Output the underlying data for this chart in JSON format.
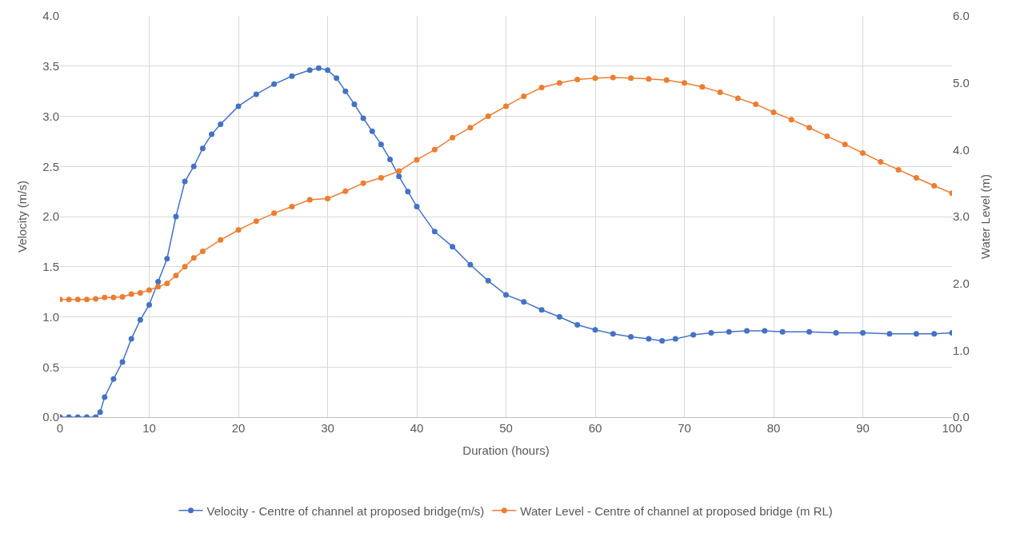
{
  "chart_data": {
    "type": "line",
    "xlabel": "Duration (hours)",
    "ylabel": "Velocity (m/s)",
    "y2label": "Water Level (m)",
    "xlim": [
      0,
      100
    ],
    "xticks": [
      0,
      10,
      20,
      30,
      40,
      50,
      60,
      70,
      80,
      90,
      100
    ],
    "ylim": [
      0,
      4
    ],
    "yticks": [
      {
        "value": 0,
        "label": "0.0"
      },
      0.5,
      {
        "value": 1,
        "label": "1.0"
      },
      1.5,
      {
        "value": 2,
        "label": "2.0"
      },
      2.5,
      {
        "value": 3,
        "label": "3.0"
      },
      3.5,
      {
        "value": 4,
        "label": "4.0"
      }
    ],
    "y2lim": [
      0,
      6
    ],
    "y2ticks": [
      {
        "value": 0,
        "label": "0.0"
      },
      {
        "value": 1,
        "label": "1.0"
      },
      {
        "value": 2,
        "label": "2.0"
      },
      {
        "value": 3,
        "label": "3.0"
      },
      {
        "value": 4,
        "label": "4.0"
      },
      {
        "value": 5,
        "label": "5.0"
      },
      {
        "value": 6,
        "label": "6.0"
      }
    ],
    "grid": true,
    "legend": "bottom",
    "marker": "circle",
    "line_style": "solid",
    "series": [
      {
        "name": "Velocity - Centre of channel at proposed bridge(m/s)",
        "color": "#4472c4",
        "x": [
          0,
          1,
          2,
          3,
          4,
          4.5,
          5,
          6,
          7,
          8,
          9,
          10,
          11,
          12,
          13,
          14,
          15,
          16,
          17,
          18,
          20,
          22,
          24,
          26,
          28,
          29,
          30,
          31,
          32,
          33,
          34,
          35,
          36,
          37,
          38,
          39,
          40,
          42,
          44,
          46,
          48,
          50,
          52,
          54,
          56,
          58,
          60,
          62,
          64,
          66,
          67.5,
          69,
          71,
          73,
          75,
          77,
          79,
          81,
          84,
          87,
          90,
          93,
          96,
          98,
          100
        ],
        "values": [
          0,
          0,
          0,
          0,
          0,
          0.05,
          0.2,
          0.38,
          0.55,
          0.78,
          0.97,
          1.12,
          1.35,
          1.58,
          2.0,
          2.35,
          2.5,
          2.68,
          2.82,
          2.92,
          3.1,
          3.22,
          3.32,
          3.4,
          3.46,
          3.48,
          3.46,
          3.38,
          3.25,
          3.12,
          2.98,
          2.85,
          2.72,
          2.57,
          2.4,
          2.25,
          2.1,
          1.85,
          1.7,
          1.52,
          1.36,
          1.22,
          1.15,
          1.07,
          1.0,
          0.92,
          0.87,
          0.83,
          0.8,
          0.78,
          0.76,
          0.78,
          0.82,
          0.84,
          0.85,
          0.86,
          0.86,
          0.85,
          0.85,
          0.84,
          0.84,
          0.83,
          0.83,
          0.83,
          0.84
        ]
      },
      {
        "name": "Water Level - Centre of channel at proposed bridge (m RL)",
        "color": "#ed7d31",
        "axis": "y2",
        "x": [
          0,
          1,
          2,
          3,
          4,
          5,
          6,
          7,
          8,
          9,
          10,
          11,
          12,
          13,
          14,
          15,
          16,
          18,
          20,
          22,
          24,
          26,
          28,
          30,
          32,
          34,
          36,
          38,
          40,
          42,
          44,
          46,
          48,
          50,
          52,
          54,
          56,
          58,
          60,
          62,
          64,
          66,
          68,
          70,
          72,
          74,
          76,
          78,
          80,
          82,
          84,
          86,
          88,
          90,
          92,
          94,
          96,
          98,
          100
        ],
        "values": [
          1.76,
          1.76,
          1.76,
          1.76,
          1.77,
          1.79,
          1.79,
          1.8,
          1.84,
          1.86,
          1.9,
          1.95,
          2.0,
          2.12,
          2.25,
          2.38,
          2.48,
          2.65,
          2.8,
          2.93,
          3.05,
          3.15,
          3.25,
          3.27,
          3.38,
          3.5,
          3.58,
          3.68,
          3.85,
          4.0,
          4.18,
          4.33,
          4.5,
          4.65,
          4.8,
          4.93,
          5.0,
          5.05,
          5.07,
          5.08,
          5.07,
          5.06,
          5.04,
          5.0,
          4.94,
          4.86,
          4.77,
          4.68,
          4.56,
          4.45,
          4.33,
          4.2,
          4.08,
          3.95,
          3.82,
          3.7,
          3.58,
          3.46,
          3.35
        ]
      }
    ]
  }
}
